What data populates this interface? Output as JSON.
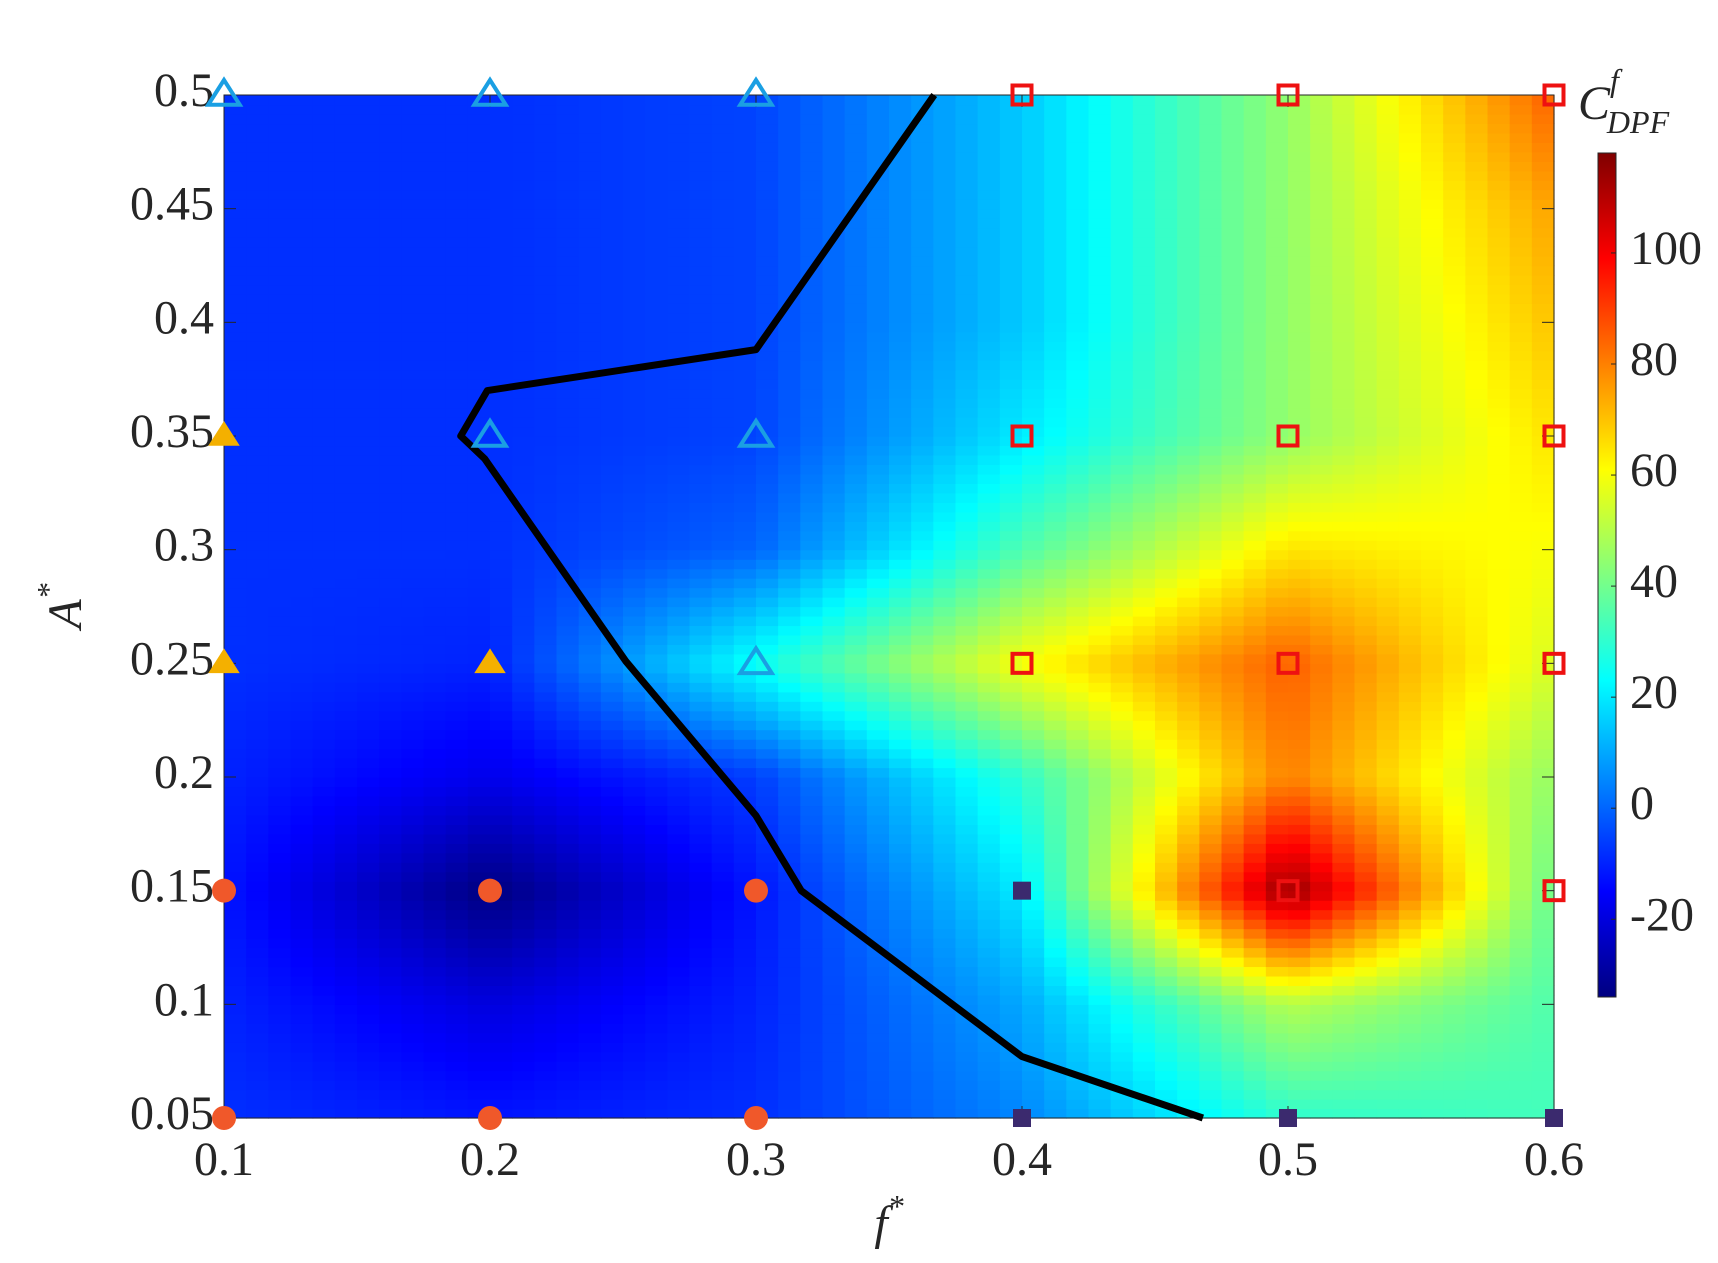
{
  "chart_data": {
    "type": "heatmap",
    "colormap": "jet",
    "x": [
      0.1,
      0.2,
      0.3,
      0.4,
      0.5,
      0.6
    ],
    "y": [
      0.05,
      0.1,
      0.15,
      0.2,
      0.25,
      0.3,
      0.35,
      0.4,
      0.45,
      0.5
    ],
    "z": [
      [
        -8,
        -12,
        -8,
        5,
        30,
        33
      ],
      [
        -10,
        -20,
        -10,
        10,
        50,
        35
      ],
      [
        -12,
        -34,
        -12,
        20,
        115,
        38
      ],
      [
        -10,
        -18,
        -6,
        30,
        80,
        45
      ],
      [
        -8,
        -10,
        25,
        60,
        85,
        55
      ],
      [
        -8,
        -8,
        0,
        35,
        65,
        60
      ],
      [
        -8,
        -8,
        -5,
        20,
        45,
        65
      ],
      [
        -8,
        -8,
        -5,
        15,
        45,
        70
      ],
      [
        -8,
        -8,
        -5,
        15,
        45,
        75
      ],
      [
        -8,
        -8,
        -5,
        15,
        45,
        85
      ]
    ],
    "xlim": [
      0.1,
      0.6
    ],
    "ylim": [
      0.05,
      0.5
    ],
    "xticks": [
      0.1,
      0.2,
      0.3,
      0.4,
      0.5,
      0.6
    ],
    "yticks": [
      0.05,
      0.1,
      0.15,
      0.2,
      0.25,
      0.3,
      0.35,
      0.4,
      0.45,
      0.5
    ],
    "clim": [
      -34,
      118
    ],
    "cticks": [
      -20,
      0,
      20,
      40,
      60,
      80,
      100
    ],
    "xlabel": {
      "base": "f",
      "sup": "*"
    },
    "ylabel": {
      "base": "A",
      "sup": "*"
    },
    "clabel": {
      "base": "C",
      "sup": "f",
      "sub": "DPF"
    },
    "boundary": {
      "color": "#000000",
      "x": [
        0.367,
        0.3,
        0.199,
        0.189,
        0.198,
        0.251,
        0.3,
        0.317,
        0.4,
        0.468
      ],
      "y": [
        0.5,
        0.388,
        0.37,
        0.35,
        0.34,
        0.251,
        0.183,
        0.15,
        0.077,
        0.05
      ]
    },
    "markers": [
      {
        "shape": "triangle-open",
        "color": "#1a9fe3",
        "x": [
          0.1,
          0.2,
          0.3,
          0.2,
          0.3,
          0.3
        ],
        "y": [
          0.5,
          0.5,
          0.5,
          0.35,
          0.35,
          0.25
        ]
      },
      {
        "shape": "triangle-filled",
        "color": "#f4b000",
        "x": [
          0.1,
          0.1,
          0.2
        ],
        "y": [
          0.35,
          0.25,
          0.25
        ]
      },
      {
        "shape": "circle-filled",
        "color": "#f0582a",
        "x": [
          0.1,
          0.2,
          0.3,
          0.1,
          0.2,
          0.3
        ],
        "y": [
          0.15,
          0.15,
          0.15,
          0.05,
          0.05,
          0.05
        ]
      },
      {
        "shape": "square-filled",
        "color": "#3b2a6e",
        "x": [
          0.4,
          0.4,
          0.5,
          0.6
        ],
        "y": [
          0.15,
          0.05,
          0.05,
          0.05
        ]
      },
      {
        "shape": "square-open",
        "color": "#ee1111",
        "x": [
          0.4,
          0.5,
          0.6,
          0.4,
          0.5,
          0.6,
          0.4,
          0.5,
          0.6,
          0.5,
          0.6
        ],
        "y": [
          0.5,
          0.5,
          0.5,
          0.35,
          0.35,
          0.35,
          0.25,
          0.25,
          0.25,
          0.15,
          0.15
        ]
      }
    ]
  }
}
